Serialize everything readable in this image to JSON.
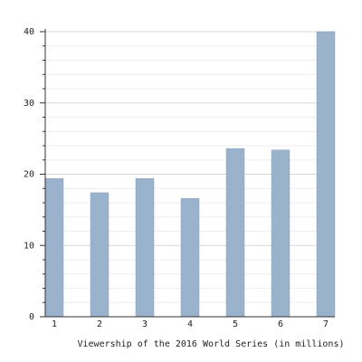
{
  "chart_data": {
    "type": "bar",
    "title": "Viewership of the 2016 World Series (in millions)",
    "categories": [
      "1",
      "2",
      "3",
      "4",
      "5",
      "6",
      "7"
    ],
    "values": [
      19.4,
      17.4,
      19.4,
      16.6,
      23.6,
      23.4,
      40.0
    ],
    "color": "#9ab2cc",
    "ylim": [
      0,
      40
    ],
    "yticks": [
      0,
      10,
      20,
      30,
      40
    ],
    "minor_yticks": [
      2,
      4,
      6,
      8,
      12,
      14,
      16,
      18,
      22,
      24,
      26,
      28,
      32,
      34,
      36,
      38
    ],
    "grid": true
  }
}
